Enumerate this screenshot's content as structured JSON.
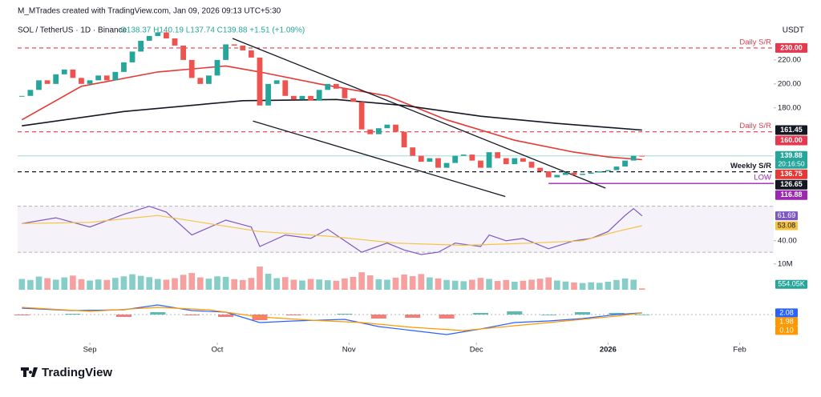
{
  "header": {
    "credit": "M_MTrades created with TradingView.com, Jan 09, 2026 09:13 UTC+5:30",
    "brand": "TradingView"
  },
  "chart_data": [
    {
      "type": "candlestick",
      "title": "SOL / TetherUS · 1D · Binance",
      "ohlc": "O138.37 H140.19 L137.74 C139.88 +1.51 (+1.09%)",
      "currency": "USDT",
      "up_color": "#26a69a",
      "down_color": "#ef5350",
      "closes": [
        190,
        195,
        203,
        200,
        208,
        212,
        205,
        200,
        203,
        207,
        203,
        210,
        218,
        227,
        236,
        240,
        243,
        238,
        232,
        220,
        205,
        200,
        207,
        220,
        233,
        232,
        228,
        222,
        182,
        200,
        203,
        190,
        187,
        190,
        186,
        195,
        200,
        196,
        188,
        185,
        162,
        158,
        163,
        166,
        160,
        147,
        140,
        135,
        138,
        130,
        134,
        140,
        141,
        136,
        130,
        143,
        138,
        133,
        138,
        135,
        130,
        127,
        122,
        124,
        126,
        124,
        125,
        126,
        127,
        128,
        131,
        136,
        140,
        139.88
      ],
      "close_label": "139.88",
      "countdown": "20:16:50",
      "xlim": [
        -0.5,
        88.5
      ],
      "ylim": [
        103,
        250
      ],
      "yticks": [
        {
          "value": 220,
          "label": "220.00"
        },
        {
          "value": 200,
          "label": "200.00"
        },
        {
          "value": 180,
          "label": "180.00"
        }
      ],
      "xticks": [
        {
          "value": 8,
          "label": "Sep"
        },
        {
          "value": 23,
          "label": "Oct"
        },
        {
          "value": 38.5,
          "label": "Nov"
        },
        {
          "value": 53.5,
          "label": "Dec"
        },
        {
          "value": 69,
          "label": "2026"
        },
        {
          "value": 84.5,
          "label": "Feb"
        }
      ],
      "ma_lines": [
        {
          "color": "#e53935",
          "x": [
            0,
            7,
            16,
            24,
            28,
            35,
            43,
            50,
            58,
            65,
            69,
            73
          ],
          "values": [
            170,
            198,
            210,
            215,
            210,
            200,
            190,
            170,
            153,
            143,
            139,
            136.75
          ],
          "label": "136.75"
        },
        {
          "color": "#131722",
          "x": [
            0,
            12,
            26,
            37,
            45,
            54,
            63,
            73
          ],
          "values": [
            165,
            177,
            186,
            187,
            182,
            173,
            167,
            161.45
          ],
          "label": "161.45"
        }
      ],
      "trendlines": [
        {
          "color": "#131722",
          "x": [
            24.8,
            68.7
          ],
          "values": [
            238,
            113
          ]
        },
        {
          "color": "#131722",
          "x": [
            27.2,
            56.9
          ],
          "values": [
            169,
            106
          ]
        }
      ],
      "levels": [
        {
          "value": 230,
          "label": "Daily S/R",
          "price_label": "230.00",
          "color": "#e53950",
          "style": "dashed"
        },
        {
          "value": 160,
          "label": "Daily S/R",
          "price_label": "160.00",
          "color": "#e53950",
          "style": "dashed"
        },
        {
          "value": 126.65,
          "label": "Weekly S/R",
          "price_label": "126.65",
          "color": "#131722",
          "style": "dashed"
        },
        {
          "value": 116.88,
          "label": "LOW",
          "price_label": "116.88",
          "color": "#9c27b0",
          "style": "solid",
          "start": 62
        }
      ]
    },
    {
      "type": "line",
      "ylim": [
        28,
        74
      ],
      "yticks": [
        {
          "value": 40,
          "label": "40.00"
        }
      ],
      "band": [
        30,
        70
      ],
      "band_color": "#7e57c2",
      "series": [
        {
          "color": "#7e57c2",
          "x": [
            0,
            4,
            8,
            12,
            15,
            17,
            20,
            24,
            27,
            28,
            31,
            34,
            36,
            38,
            40,
            43,
            45,
            47,
            49,
            51,
            54,
            55,
            57,
            59,
            62,
            65,
            67,
            69,
            71,
            72,
            73
          ],
          "values": [
            55,
            60,
            52,
            63,
            70,
            65,
            45,
            58,
            52,
            35,
            45,
            42,
            50,
            40,
            30,
            38,
            32,
            28,
            30,
            38,
            35,
            45,
            40,
            42,
            33,
            40,
            42,
            48,
            62,
            68,
            61.69
          ],
          "label": "61.69"
        },
        {
          "color": "#f5c342",
          "x": [
            0,
            8,
            16,
            22,
            28,
            36,
            44,
            52,
            60,
            66,
            70,
            73
          ],
          "values": [
            55,
            56,
            62,
            55,
            48,
            44,
            38,
            36,
            38,
            40,
            48,
            53.08
          ],
          "label": "53.08"
        }
      ]
    },
    {
      "type": "bar",
      "ylim": [
        0,
        11.5
      ],
      "yticks": [
        {
          "value": 10,
          "label": "10M"
        }
      ],
      "values": [
        4.2,
        3.8,
        5.1,
        4.5,
        3.9,
        4.8,
        5.5,
        4.1,
        3.6,
        4.0,
        3.8,
        4.6,
        5.2,
        6.0,
        5.4,
        4.9,
        4.2,
        3.9,
        4.5,
        5.8,
        6.5,
        4.8,
        4.3,
        5.2,
        5.0,
        4.1,
        3.8,
        4.6,
        9.0,
        6.2,
        4.5,
        4.9,
        3.9,
        3.6,
        4.2,
        4.0,
        3.7,
        3.5,
        4.4,
        5.0,
        6.8,
        5.6,
        4.1,
        3.9,
        4.7,
        5.9,
        5.3,
        6.1,
        4.8,
        4.4,
        3.8,
        3.5,
        3.3,
        3.9,
        4.6,
        4.2,
        3.4,
        3.8,
        3.1,
        3.5,
        3.9,
        4.3,
        4.8,
        3.6,
        3.2,
        2.8,
        2.6,
        2.9,
        2.7,
        3.1,
        3.8,
        4.4,
        3.9,
        0.55405
      ],
      "value_label": "554.05K",
      "label_color": "#26a69a"
    },
    {
      "type": "line",
      "ylim": [
        -32,
        25
      ],
      "series": [
        {
          "color": "#2962ff",
          "x": [
            0,
            6,
            12,
            16,
            20,
            24,
            28,
            32,
            38,
            42,
            46,
            50,
            54,
            58,
            62,
            66,
            70,
            73
          ],
          "values": [
            8,
            5,
            6,
            12,
            5,
            3,
            -10,
            -8,
            -6,
            -15,
            -20,
            -25,
            -18,
            -10,
            -8,
            -5,
            0,
            2.08
          ],
          "label": "2.08"
        },
        {
          "color": "#ff9800",
          "x": [
            0,
            8,
            16,
            22,
            28,
            34,
            40,
            46,
            52,
            58,
            64,
            70,
            73
          ],
          "values": [
            9,
            4,
            9,
            6,
            -3,
            -7,
            -10,
            -16,
            -20,
            -14,
            -8,
            -2,
            1.98
          ],
          "label": "1.98"
        }
      ],
      "histogram": {
        "x": [
          0,
          6,
          12,
          16,
          20,
          24,
          28,
          32,
          38,
          42,
          46,
          50,
          54,
          58,
          62,
          66,
          70,
          73
        ],
        "values": [
          -1,
          1,
          -3,
          3,
          -1,
          -3,
          -7,
          -1,
          1,
          -5,
          -4,
          -5,
          2,
          4,
          0,
          3,
          2,
          0.1
        ],
        "label": "0.10",
        "up_color": "#26a69a",
        "down_color": "#ef5350",
        "label_color": "#ff9800"
      }
    }
  ]
}
